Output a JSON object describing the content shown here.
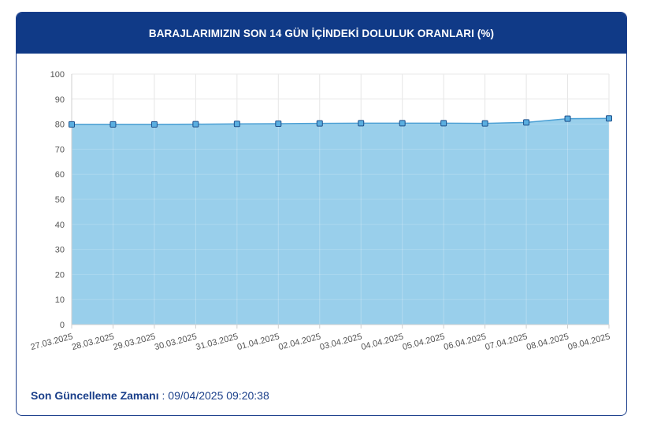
{
  "header": {
    "title": "BARAJLARIMIZIN SON 14 GÜN İÇİNDEKİ DOLULUK ORANLARI (%)"
  },
  "footer": {
    "label": "Son Güncelleme Zamanı",
    "separator": " : ",
    "value": "09/04/2025 09:20:38"
  },
  "chart_data": {
    "type": "area",
    "title": "BARAJLARIMIZIN SON 14 GÜN İÇİNDEKİ DOLULUK ORANLARI (%)",
    "xlabel": "",
    "ylabel": "",
    "ylim": [
      0,
      100
    ],
    "yticks": [
      0,
      10,
      20,
      30,
      40,
      50,
      60,
      70,
      80,
      90,
      100
    ],
    "grid": true,
    "categories": [
      "27.03.2025",
      "28.03.2025",
      "29.03.2025",
      "30.03.2025",
      "31.03.2025",
      "01.04.2025",
      "02.04.2025",
      "03.04.2025",
      "04.04.2025",
      "05.04.2025",
      "06.04.2025",
      "07.04.2025",
      "08.04.2025",
      "09.04.2025"
    ],
    "values": [
      79.9,
      79.9,
      79.9,
      80.0,
      80.1,
      80.2,
      80.3,
      80.4,
      80.4,
      80.4,
      80.3,
      80.7,
      82.2,
      82.3
    ],
    "colors": {
      "line": "#4a9fd4",
      "fill": "#99cfeb",
      "marker": "#5aaee0",
      "marker_stroke": "#1e4f8a",
      "grid": "#e6e6e6"
    }
  }
}
